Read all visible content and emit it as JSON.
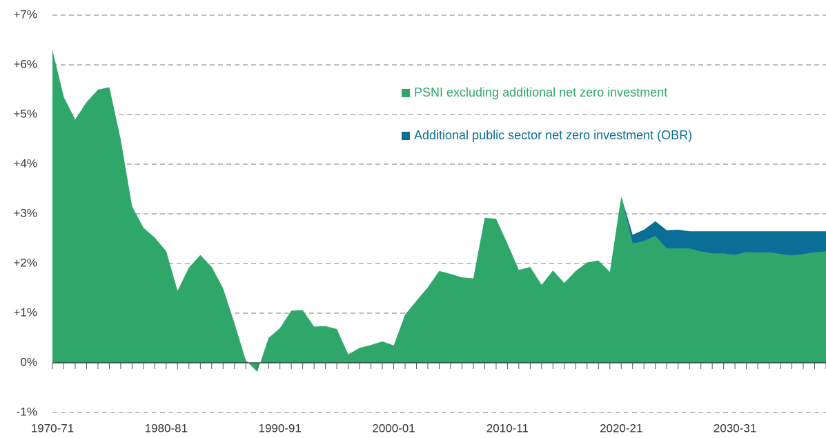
{
  "chart_data": {
    "type": "stacked_area",
    "categories": [
      "1970-71",
      null,
      null,
      null,
      null,
      null,
      null,
      null,
      null,
      null,
      "1980-81",
      null,
      null,
      null,
      null,
      null,
      null,
      null,
      null,
      null,
      "1990-91",
      null,
      null,
      null,
      null,
      null,
      null,
      null,
      null,
      null,
      "2000-01",
      null,
      null,
      null,
      null,
      null,
      null,
      null,
      null,
      null,
      "2010-11",
      null,
      null,
      null,
      null,
      null,
      null,
      null,
      null,
      null,
      "2020-21",
      null,
      null,
      null,
      null,
      null,
      null,
      null,
      null,
      null,
      "2030-31",
      null,
      null,
      null,
      null,
      null,
      null,
      null,
      null
    ],
    "series": [
      {
        "name": "PSNI excluding additional net zero investment",
        "color": "#2fa76b",
        "values": [
          6.3,
          5.35,
          4.9,
          5.25,
          5.5,
          5.55,
          4.5,
          3.15,
          2.72,
          2.52,
          2.25,
          1.45,
          1.92,
          2.17,
          1.93,
          1.5,
          0.8,
          0.05,
          -0.18,
          0.5,
          0.7,
          1.05,
          1.06,
          0.73,
          0.74,
          0.68,
          0.17,
          0.3,
          0.36,
          0.43,
          0.35,
          0.97,
          1.25,
          1.52,
          1.85,
          1.79,
          1.72,
          1.7,
          2.92,
          2.9,
          2.4,
          1.87,
          1.93,
          1.57,
          1.86,
          1.61,
          1.85,
          2.02,
          2.06,
          1.83,
          3.35,
          2.4,
          2.45,
          2.55,
          2.3,
          2.3,
          2.3,
          2.24,
          2.2,
          2.2,
          2.17,
          2.23,
          2.22,
          2.22,
          2.19,
          2.16,
          2.19,
          2.22,
          2.24
        ]
      },
      {
        "name": "Additional public sector net zero investment (OBR)",
        "color": "#0b6e96",
        "values": [
          null,
          null,
          null,
          null,
          null,
          null,
          null,
          null,
          null,
          null,
          null,
          null,
          null,
          null,
          null,
          null,
          null,
          null,
          null,
          null,
          null,
          null,
          null,
          null,
          null,
          null,
          null,
          null,
          null,
          null,
          null,
          null,
          null,
          null,
          null,
          null,
          null,
          null,
          null,
          null,
          null,
          null,
          null,
          null,
          null,
          null,
          null,
          null,
          null,
          null,
          0,
          0.18,
          0.23,
          0.3,
          0.37,
          0.38,
          0.35,
          0.41,
          0.45,
          0.45,
          0.48,
          0.42,
          0.43,
          0.43,
          0.46,
          0.49,
          0.46,
          0.43,
          0.41
        ]
      }
    ],
    "ylim": [
      -1,
      7
    ],
    "yticks": [
      {
        "value": -1,
        "label": "-1%"
      },
      {
        "value": 0,
        "label": "0%"
      },
      {
        "value": 1,
        "label": "+1%"
      },
      {
        "value": 2,
        "label": "+2%"
      },
      {
        "value": 3,
        "label": "+3%"
      },
      {
        "value": 4,
        "label": "+4%"
      },
      {
        "value": 5,
        "label": "+5%"
      },
      {
        "value": 6,
        "label": "+6%"
      },
      {
        "value": 7,
        "label": "+7%"
      }
    ],
    "grid": true
  }
}
